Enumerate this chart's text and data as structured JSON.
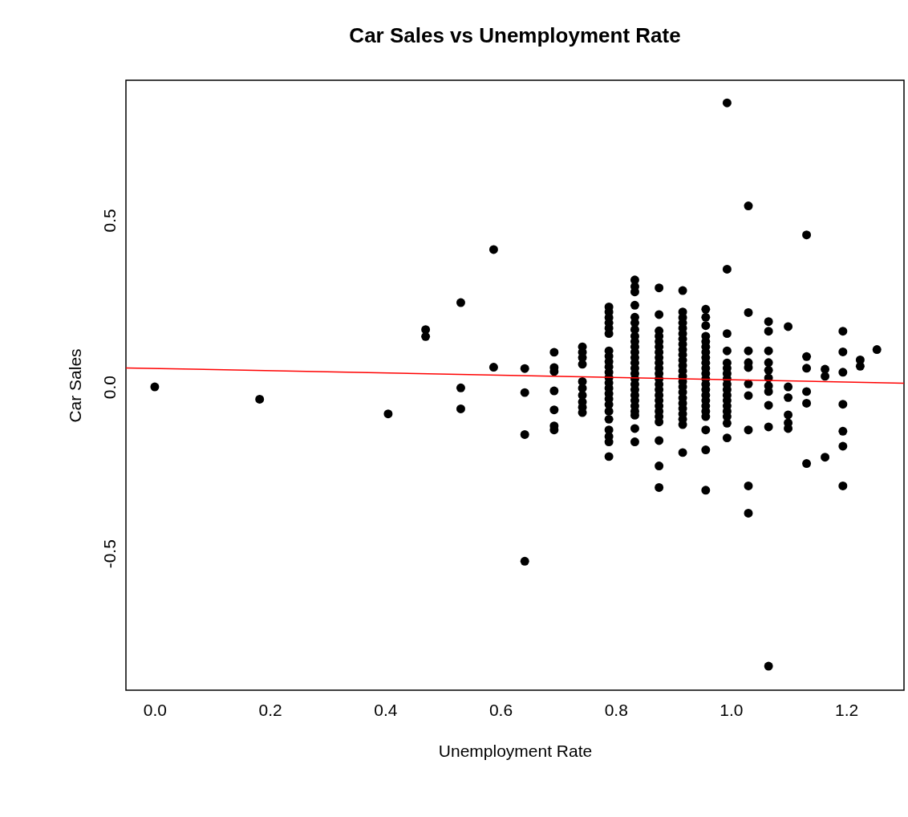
{
  "chart_data": {
    "type": "scatter",
    "title": "Car Sales vs Unemployment Rate",
    "xlabel": "Unemployment Rate",
    "ylabel": "Car Sales",
    "xlim": [
      -0.05,
      1.3
    ],
    "ylim": [
      -0.91,
      0.92
    ],
    "xticks": [
      {
        "value": 0,
        "label": "0.0"
      },
      {
        "value": 0.2,
        "label": "0.2"
      },
      {
        "value": 0.4,
        "label": "0.4"
      },
      {
        "value": 0.6,
        "label": "0.6"
      },
      {
        "value": 0.8,
        "label": "0.8"
      },
      {
        "value": 1,
        "label": "1.0"
      },
      {
        "value": 1.2,
        "label": "1.2"
      }
    ],
    "yticks": [
      {
        "value": -0.5,
        "label": "-0.5"
      },
      {
        "value": 0,
        "label": "0.0"
      },
      {
        "value": 0.5,
        "label": "0.5"
      }
    ],
    "grid": false,
    "series": [
      {
        "color": "#000000",
        "marker": "circle",
        "x": [
          0.0,
          0.182,
          0.405,
          0.47,
          0.47,
          0.531,
          0.531,
          0.531,
          0.588,
          0.588,
          0.642,
          0.642,
          0.642,
          0.642,
          0.693,
          0.693,
          0.693,
          0.693,
          0.693,
          0.693,
          0.693,
          0.742,
          0.742,
          0.742,
          0.742,
          0.742,
          0.742,
          0.742,
          0.742,
          0.742,
          0.742,
          0.788,
          0.788,
          0.788,
          0.788,
          0.788,
          0.788,
          0.788,
          0.788,
          0.788,
          0.788,
          0.788,
          0.788,
          0.788,
          0.788,
          0.788,
          0.788,
          0.788,
          0.788,
          0.788,
          0.788,
          0.788,
          0.788,
          0.788,
          0.833,
          0.833,
          0.833,
          0.833,
          0.833,
          0.833,
          0.833,
          0.833,
          0.833,
          0.833,
          0.833,
          0.833,
          0.833,
          0.833,
          0.833,
          0.833,
          0.833,
          0.833,
          0.833,
          0.833,
          0.833,
          0.833,
          0.833,
          0.833,
          0.833,
          0.875,
          0.875,
          0.875,
          0.875,
          0.875,
          0.875,
          0.875,
          0.875,
          0.875,
          0.875,
          0.875,
          0.875,
          0.875,
          0.875,
          0.875,
          0.875,
          0.875,
          0.875,
          0.875,
          0.875,
          0.875,
          0.875,
          0.875,
          0.916,
          0.916,
          0.916,
          0.916,
          0.916,
          0.916,
          0.916,
          0.916,
          0.916,
          0.916,
          0.916,
          0.916,
          0.916,
          0.916,
          0.916,
          0.916,
          0.916,
          0.916,
          0.916,
          0.916,
          0.916,
          0.916,
          0.916,
          0.916,
          0.956,
          0.956,
          0.956,
          0.956,
          0.956,
          0.956,
          0.956,
          0.956,
          0.956,
          0.956,
          0.956,
          0.956,
          0.956,
          0.956,
          0.956,
          0.956,
          0.956,
          0.956,
          0.956,
          0.956,
          0.956,
          0.956,
          0.993,
          0.993,
          0.993,
          0.993,
          0.993,
          0.993,
          0.993,
          0.993,
          0.993,
          0.993,
          0.993,
          0.993,
          0.993,
          0.993,
          0.993,
          0.993,
          0.993,
          1.03,
          1.03,
          1.03,
          1.03,
          1.03,
          1.03,
          1.03,
          1.03,
          1.03,
          1.03,
          1.065,
          1.065,
          1.065,
          1.065,
          1.065,
          1.065,
          1.065,
          1.065,
          1.065,
          1.065,
          1.065,
          1.099,
          1.099,
          1.099,
          1.099,
          1.099,
          1.099,
          1.131,
          1.131,
          1.131,
          1.131,
          1.131,
          1.131,
          1.163,
          1.163,
          1.163,
          1.194,
          1.194,
          1.194,
          1.194,
          1.194,
          1.194,
          1.194,
          1.224,
          1.224,
          1.253
        ],
        "values": [
          0.0,
          -0.037,
          -0.081,
          0.172,
          0.151,
          0.253,
          -0.003,
          -0.066,
          0.412,
          0.059,
          0.055,
          -0.017,
          -0.143,
          -0.523,
          0.104,
          0.058,
          0.046,
          -0.012,
          -0.069,
          -0.117,
          -0.129,
          0.12,
          0.104,
          0.088,
          0.068,
          0.016,
          -0.004,
          -0.025,
          -0.045,
          -0.061,
          -0.077,
          0.24,
          0.225,
          0.208,
          0.192,
          0.176,
          0.16,
          0.108,
          0.092,
          0.076,
          0.06,
          0.044,
          0.028,
          0.012,
          -0.004,
          -0.02,
          -0.036,
          -0.053,
          -0.073,
          -0.097,
          -0.129,
          -0.149,
          -0.165,
          -0.209,
          0.321,
          0.301,
          0.285,
          0.245,
          0.209,
          0.192,
          0.172,
          0.152,
          0.136,
          0.12,
          0.104,
          0.088,
          0.072,
          0.056,
          0.04,
          0.024,
          0.008,
          -0.008,
          -0.025,
          -0.041,
          -0.057,
          -0.073,
          -0.085,
          -0.125,
          -0.165,
          0.297,
          0.217,
          0.168,
          0.152,
          0.136,
          0.12,
          0.104,
          0.088,
          0.072,
          0.056,
          0.04,
          0.024,
          0.008,
          -0.008,
          -0.025,
          -0.041,
          -0.057,
          -0.073,
          -0.089,
          -0.105,
          -0.161,
          -0.237,
          -0.302,
          0.289,
          0.225,
          0.208,
          0.192,
          0.176,
          0.16,
          0.144,
          0.128,
          0.112,
          0.096,
          0.08,
          0.064,
          0.048,
          0.032,
          0.016,
          0.0,
          -0.016,
          -0.033,
          -0.049,
          -0.065,
          -0.081,
          -0.097,
          -0.113,
          -0.197,
          0.233,
          0.209,
          0.184,
          0.152,
          0.136,
          0.12,
          0.104,
          0.088,
          0.072,
          0.056,
          0.04,
          0.024,
          0.008,
          -0.008,
          -0.025,
          -0.041,
          -0.057,
          -0.073,
          -0.089,
          -0.129,
          -0.189,
          -0.31,
          0.852,
          0.353,
          0.16,
          0.108,
          0.072,
          0.056,
          0.04,
          0.024,
          0.008,
          -0.008,
          -0.025,
          -0.041,
          -0.057,
          -0.073,
          -0.089,
          -0.109,
          -0.153,
          0.543,
          0.223,
          0.108,
          0.073,
          0.058,
          0.009,
          -0.026,
          -0.129,
          -0.297,
          -0.379,
          0.196,
          0.167,
          0.108,
          0.073,
          0.05,
          0.027,
          0.003,
          -0.014,
          -0.055,
          -0.12,
          -0.838,
          0.181,
          0.0,
          -0.032,
          -0.084,
          -0.108,
          -0.125,
          0.456,
          0.091,
          0.056,
          -0.014,
          -0.049,
          -0.23,
          0.053,
          0.032,
          -0.211,
          0.167,
          0.105,
          0.044,
          -0.052,
          -0.133,
          -0.178,
          -0.297,
          0.081,
          0.062,
          0.112
        ]
      },
      {
        "type": "line",
        "color": "#ff0000",
        "line_style": "solid",
        "x": [
          -0.05,
          1.3
        ],
        "values": [
          0.057,
          0.011
        ]
      }
    ]
  }
}
